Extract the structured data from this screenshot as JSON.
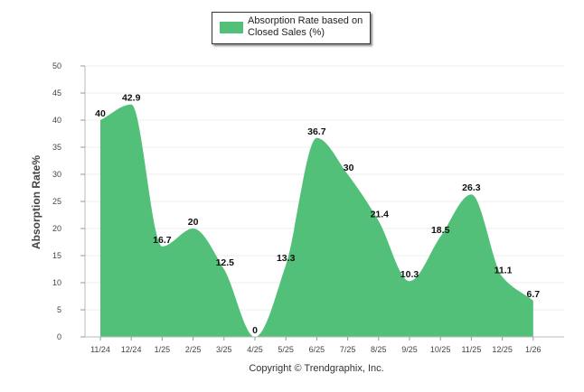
{
  "chart_data": {
    "type": "area",
    "title": "",
    "xlabel": "",
    "ylabel": "Absorption Rate%",
    "ylim": [
      0,
      50
    ],
    "yticks": [
      0,
      5,
      10,
      15,
      20,
      25,
      30,
      35,
      40,
      45,
      50
    ],
    "categories": [
      "11/24",
      "12/24",
      "1/25",
      "2/25",
      "3/25",
      "4/25",
      "5/25",
      "6/25",
      "7/25",
      "8/25",
      "9/25",
      "10/25",
      "11/25",
      "12/25",
      "1/26"
    ],
    "series": [
      {
        "name": "Absorption Rate based on Closed Sales (%)",
        "values": [
          40,
          42.9,
          16.7,
          20,
          12.5,
          0,
          13.3,
          36.7,
          30,
          21.4,
          10.3,
          18.5,
          26.3,
          11.1,
          6.7
        ],
        "labels": [
          "40",
          "42.9",
          "16.7",
          "20",
          "12.5",
          "0",
          "13.3",
          "36.7",
          "30",
          "21.4",
          "10.3",
          "18.5",
          "26.3",
          "11.1",
          "6.7"
        ],
        "color": "#53c07a"
      }
    ],
    "legend": {
      "position": "top-center"
    },
    "grid": true
  },
  "footer": {
    "copyright": "Copyright © Trendgraphix, Inc."
  }
}
